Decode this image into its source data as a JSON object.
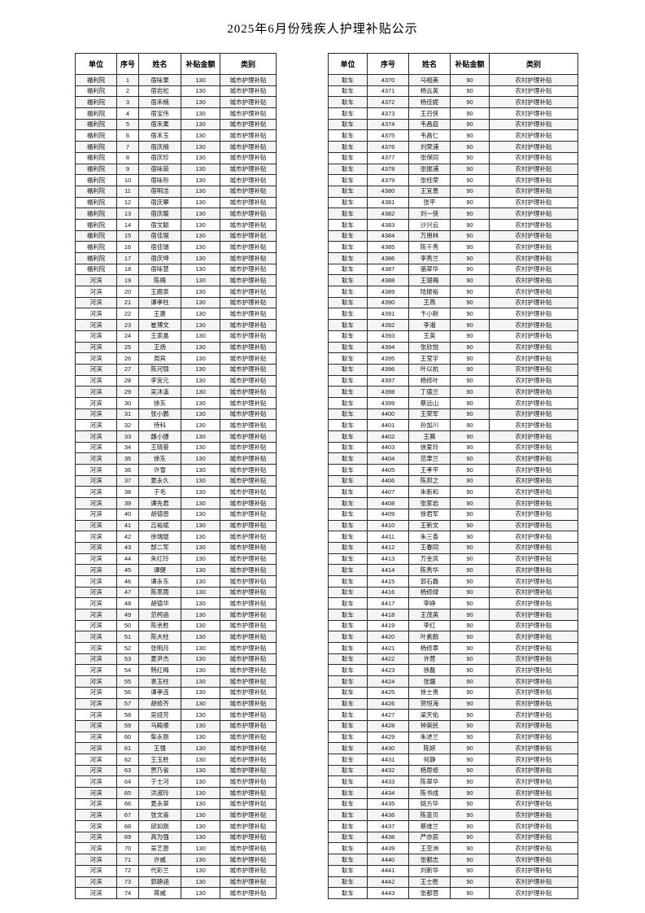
{
  "title": "2025年6月份残疾人护理补贴公示",
  "columns": [
    "单位",
    "序号",
    "姓名",
    "补贴金额",
    "类别"
  ],
  "tables": {
    "left": {
      "rows": [
        [
          "福利院",
          "1",
          "宿咏果",
          "130",
          "城市护理补贴"
        ],
        [
          "福利院",
          "2",
          "宿岩松",
          "130",
          "城市护理补贴"
        ],
        [
          "福利院",
          "3",
          "宿禾楠",
          "130",
          "城市护理补贴"
        ],
        [
          "福利院",
          "4",
          "宿宝伟",
          "130",
          "城市护理补贴"
        ],
        [
          "福利院",
          "5",
          "宿禾果",
          "130",
          "城市护理补贴"
        ],
        [
          "福利院",
          "6",
          "宿禾玉",
          "130",
          "城市护理补贴"
        ],
        [
          "福利院",
          "7",
          "宿庆楠",
          "130",
          "城市护理补贴"
        ],
        [
          "福利院",
          "8",
          "宿庆珍",
          "130",
          "城市护理补贴"
        ],
        [
          "福利院",
          "9",
          "宿咏茹",
          "130",
          "城市护理补贴"
        ],
        [
          "福利院",
          "10",
          "宿咏彤",
          "130",
          "城市护理补贴"
        ],
        [
          "福利院",
          "11",
          "宿明洁",
          "130",
          "城市护理补贴"
        ],
        [
          "福利院",
          "12",
          "宿庆攀",
          "130",
          "城市护理补贴"
        ],
        [
          "福利院",
          "13",
          "宿庆暖",
          "130",
          "城市护理补贴"
        ],
        [
          "福利院",
          "14",
          "宿文聪",
          "130",
          "城市护理补贴"
        ],
        [
          "福利院",
          "15",
          "宿佳琚",
          "130",
          "城市护理补贴"
        ],
        [
          "福利院",
          "16",
          "宿佳瑞",
          "130",
          "城市护理补贴"
        ],
        [
          "福利院",
          "17",
          "宿庆坤",
          "130",
          "城市护理补贴"
        ],
        [
          "福利院",
          "18",
          "宿咏慧",
          "130",
          "城市护理补贴"
        ],
        [
          "河滨",
          "19",
          "陈梅",
          "130",
          "城市护理补贴"
        ],
        [
          "河滨",
          "20",
          "王跟泉",
          "130",
          "城市护理补贴"
        ],
        [
          "河滨",
          "21",
          "谭孝柱",
          "130",
          "城市护理补贴"
        ],
        [
          "河滨",
          "22",
          "王惠",
          "130",
          "城市护理补贴"
        ],
        [
          "河滨",
          "23",
          "崔博文",
          "130",
          "城市护理补贴"
        ],
        [
          "河滨",
          "24",
          "王家晶",
          "130",
          "城市护理补贴"
        ],
        [
          "河滨",
          "25",
          "王炀",
          "130",
          "城市护理补贴"
        ],
        [
          "河滨",
          "26",
          "周宾",
          "130",
          "城市护理补贴"
        ],
        [
          "河滨",
          "27",
          "陈河锦",
          "130",
          "城市护理补贴"
        ],
        [
          "河滨",
          "28",
          "李宜元",
          "130",
          "城市护理补贴"
        ],
        [
          "河滨",
          "29",
          "吴沐溪",
          "130",
          "城市护理补贴"
        ],
        [
          "河滨",
          "30",
          "徐东",
          "130",
          "城市护理补贴"
        ],
        [
          "河滨",
          "31",
          "张小鹏",
          "130",
          "城市护理补贴"
        ],
        [
          "河滨",
          "32",
          "侍科",
          "130",
          "城市护理补贴"
        ],
        [
          "河滨",
          "33",
          "魏小捷",
          "130",
          "城市护理补贴"
        ],
        [
          "河滨",
          "34",
          "王晓曼",
          "130",
          "城市护理补贴"
        ],
        [
          "河滨",
          "35",
          "徐东",
          "130",
          "城市护理补贴"
        ],
        [
          "河滨",
          "36",
          "许雪",
          "130",
          "城市护理补贴"
        ],
        [
          "河滨",
          "37",
          "夏永久",
          "130",
          "城市护理补贴"
        ],
        [
          "河滨",
          "38",
          "于毛",
          "130",
          "城市护理补贴"
        ],
        [
          "河滨",
          "39",
          "谭先君",
          "130",
          "城市护理补贴"
        ],
        [
          "河滨",
          "40",
          "胡德恩",
          "130",
          "城市护理补贴"
        ],
        [
          "河滨",
          "41",
          "吕裕斌",
          "130",
          "城市护理补贴"
        ],
        [
          "河滨",
          "42",
          "徐瑞琨",
          "130",
          "城市护理补贴"
        ],
        [
          "河滨",
          "43",
          "郜二军",
          "130",
          "城市护理补贴"
        ],
        [
          "河滨",
          "44",
          "朱红玲",
          "130",
          "城市护理补贴"
        ],
        [
          "河滨",
          "45",
          "谭健",
          "130",
          "城市护理补贴"
        ],
        [
          "河滨",
          "46",
          "谭永东",
          "130",
          "城市护理补贴"
        ],
        [
          "河滨",
          "47",
          "陈思雨",
          "130",
          "城市护理补贴"
        ],
        [
          "河滨",
          "48",
          "胡德华",
          "130",
          "城市护理补贴"
        ],
        [
          "河滨",
          "49",
          "范柯函",
          "130",
          "城市护理补贴"
        ],
        [
          "河滨",
          "50",
          "陈余胜",
          "130",
          "城市护理补贴"
        ],
        [
          "河滨",
          "51",
          "陈大柱",
          "130",
          "城市护理补贴"
        ],
        [
          "河滨",
          "52",
          "张明月",
          "130",
          "城市护理补贴"
        ],
        [
          "河滨",
          "53",
          "夏尹杰",
          "130",
          "城市护理补贴"
        ],
        [
          "河滨",
          "54",
          "韩红梅",
          "130",
          "城市护理补贴"
        ],
        [
          "河滨",
          "55",
          "袁玉柱",
          "130",
          "城市护理补贴"
        ],
        [
          "河滨",
          "56",
          "谭孝连",
          "130",
          "城市护理补贴"
        ],
        [
          "河滨",
          "57",
          "胡修齐",
          "130",
          "城市护理补贴"
        ],
        [
          "河滨",
          "58",
          "吴娅芳",
          "130",
          "城市护理补贴"
        ],
        [
          "河滨",
          "59",
          "马殿顺",
          "130",
          "城市护理补贴"
        ],
        [
          "河滨",
          "60",
          "柴永刚",
          "130",
          "城市护理补贴"
        ],
        [
          "河滨",
          "61",
          "王强",
          "130",
          "城市护理补贴"
        ],
        [
          "河滨",
          "62",
          "王玉胜",
          "130",
          "城市护理补贴"
        ],
        [
          "河滨",
          "63",
          "贾乃省",
          "130",
          "城市护理补贴"
        ],
        [
          "河滨",
          "64",
          "于士河",
          "130",
          "城市护理补贴"
        ],
        [
          "河滨",
          "65",
          "洪淑玲",
          "130",
          "城市护理补贴"
        ],
        [
          "河滨",
          "66",
          "夏永翠",
          "130",
          "城市护理补贴"
        ],
        [
          "河滨",
          "67",
          "张文喜",
          "130",
          "城市护理补贴"
        ],
        [
          "河滨",
          "68",
          "邱如刚",
          "130",
          "城市护理补贴"
        ],
        [
          "河滨",
          "69",
          "高为强",
          "130",
          "城市护理补贴"
        ],
        [
          "河滨",
          "70",
          "吴艺恩",
          "130",
          "城市护理补贴"
        ],
        [
          "河滨",
          "71",
          "许威",
          "130",
          "城市护理补贴"
        ],
        [
          "河滨",
          "72",
          "代彩兰",
          "130",
          "城市护理补贴"
        ],
        [
          "河滨",
          "73",
          "郭静涵",
          "130",
          "城市护理补贴"
        ],
        [
          "河滨",
          "74",
          "蒋威",
          "130",
          "城市护理补贴"
        ]
      ]
    },
    "right": {
      "rows": [
        [
          "耿车",
          "4370",
          "马相美",
          "90",
          "农村护理补贴"
        ],
        [
          "耿车",
          "4371",
          "杨云英",
          "90",
          "农村护理补贴"
        ],
        [
          "耿车",
          "4372",
          "杨佳妮",
          "90",
          "农村护理补贴"
        ],
        [
          "耿车",
          "4373",
          "王召侠",
          "90",
          "农村护理补贴"
        ],
        [
          "耿车",
          "4374",
          "韦昌庭",
          "90",
          "农村护理补贴"
        ],
        [
          "耿车",
          "4375",
          "韦昌仁",
          "90",
          "农村护理补贴"
        ],
        [
          "耿车",
          "4376",
          "刘荣浦",
          "90",
          "农村护理补贴"
        ],
        [
          "耿车",
          "4377",
          "张保同",
          "90",
          "农村护理补贴"
        ],
        [
          "耿车",
          "4378",
          "张振浦",
          "90",
          "农村护理补贴"
        ],
        [
          "耿车",
          "4379",
          "张桂荣",
          "90",
          "农村护理补贴"
        ],
        [
          "耿车",
          "4380",
          "王宜恩",
          "90",
          "农村护理补贴"
        ],
        [
          "耿车",
          "4381",
          "张平",
          "90",
          "农村护理补贴"
        ],
        [
          "耿车",
          "4382",
          "刘一侠",
          "90",
          "农村护理补贴"
        ],
        [
          "耿车",
          "4383",
          "沙兴云",
          "90",
          "农村护理补贴"
        ],
        [
          "耿车",
          "4384",
          "万朋林",
          "90",
          "农村护理补贴"
        ],
        [
          "耿车",
          "4385",
          "陈千秀",
          "90",
          "农村护理补贴"
        ],
        [
          "耿车",
          "4386",
          "李秀兰",
          "90",
          "农村护理补贴"
        ],
        [
          "耿车",
          "4387",
          "骆翠华",
          "90",
          "农村护理补贴"
        ],
        [
          "耿车",
          "4388",
          "王银梅",
          "90",
          "农村护理补贴"
        ],
        [
          "耿车",
          "4389",
          "陆振裕",
          "90",
          "农村护理补贴"
        ],
        [
          "耿车",
          "4390",
          "王燕",
          "90",
          "农村护理补贴"
        ],
        [
          "耿车",
          "4391",
          "卞小默",
          "90",
          "农村护理补贴"
        ],
        [
          "耿车",
          "4392",
          "李湘",
          "90",
          "农村护理补贴"
        ],
        [
          "耿车",
          "4393",
          "王英",
          "90",
          "农村护理补贴"
        ],
        [
          "耿车",
          "4394",
          "张欣悦",
          "90",
          "农村护理补贴"
        ],
        [
          "耿车",
          "4395",
          "王莹宇",
          "90",
          "农村护理补贴"
        ],
        [
          "耿车",
          "4396",
          "叶以杭",
          "90",
          "农村护理补贴"
        ],
        [
          "耿车",
          "4397",
          "杨修叶",
          "90",
          "农村护理补贴"
        ],
        [
          "耿车",
          "4398",
          "丁德兰",
          "90",
          "农村护理补贴"
        ],
        [
          "耿车",
          "4399",
          "蔡远山",
          "90",
          "农村护理补贴"
        ],
        [
          "耿车",
          "4400",
          "王荣军",
          "90",
          "农村护理补贴"
        ],
        [
          "耿车",
          "4401",
          "孙加川",
          "90",
          "农村护理补贴"
        ],
        [
          "耿车",
          "4402",
          "王赛",
          "90",
          "农村护理补贴"
        ],
        [
          "耿车",
          "4403",
          "徐爱玲",
          "90",
          "农村护理补贴"
        ],
        [
          "耿车",
          "4404",
          "范聿兰",
          "90",
          "农村护理补贴"
        ],
        [
          "耿车",
          "4405",
          "王孝平",
          "90",
          "农村护理补贴"
        ],
        [
          "耿车",
          "4406",
          "陈邦之",
          "90",
          "农村护理补贴"
        ],
        [
          "耿车",
          "4407",
          "朱新和",
          "90",
          "农村护理补贴"
        ],
        [
          "耿车",
          "4408",
          "张家岩",
          "90",
          "农村护理补贴"
        ],
        [
          "耿车",
          "4409",
          "徐君军",
          "90",
          "农村护理补贴"
        ],
        [
          "耿车",
          "4410",
          "王新文",
          "90",
          "农村护理补贴"
        ],
        [
          "耿车",
          "4411",
          "朱三香",
          "90",
          "农村护理补贴"
        ],
        [
          "耿车",
          "4412",
          "王春同",
          "90",
          "农村护理补贴"
        ],
        [
          "耿车",
          "4413",
          "万金凤",
          "90",
          "农村护理补贴"
        ],
        [
          "耿车",
          "4414",
          "陈秀华",
          "90",
          "农村护理补贴"
        ],
        [
          "耿车",
          "4415",
          "郭石磊",
          "90",
          "农村护理补贴"
        ],
        [
          "耿车",
          "4416",
          "杨修绿",
          "90",
          "农村护理补贴"
        ],
        [
          "耿车",
          "4417",
          "李峥",
          "90",
          "农村护理补贴"
        ],
        [
          "耿车",
          "4418",
          "王茂英",
          "90",
          "农村护理补贴"
        ],
        [
          "耿车",
          "4419",
          "李红",
          "90",
          "农村护理补贴"
        ],
        [
          "耿车",
          "4420",
          "叶素鹃",
          "90",
          "农村护理补贴"
        ],
        [
          "耿车",
          "4421",
          "杨修章",
          "90",
          "农村护理补贴"
        ],
        [
          "耿车",
          "4422",
          "许营",
          "90",
          "农村护理补贴"
        ],
        [
          "耿车",
          "4423",
          "徐磊",
          "90",
          "农村护理补贴"
        ],
        [
          "耿车",
          "4424",
          "张疆",
          "90",
          "农村护理补贴"
        ],
        [
          "耿车",
          "4425",
          "徐士贵",
          "90",
          "农村护理补贴"
        ],
        [
          "耿车",
          "4426",
          "贺恒海",
          "90",
          "农村护理补贴"
        ],
        [
          "耿车",
          "4427",
          "梁天佑",
          "90",
          "农村护理补贴"
        ],
        [
          "耿车",
          "4428",
          "钟崇民",
          "90",
          "农村护理补贴"
        ],
        [
          "耿车",
          "4429",
          "朱述兰",
          "90",
          "农村护理补贴"
        ],
        [
          "耿车",
          "4430",
          "陈妍",
          "90",
          "农村护理补贴"
        ],
        [
          "耿车",
          "4431",
          "何静",
          "90",
          "农村护理补贴"
        ],
        [
          "耿车",
          "4432",
          "杨思修",
          "90",
          "农村护理补贴"
        ],
        [
          "耿车",
          "4433",
          "陈翠华",
          "90",
          "农村护理补贴"
        ],
        [
          "耿车",
          "4434",
          "陈书成",
          "90",
          "农村护理补贴"
        ],
        [
          "耿车",
          "4435",
          "姚方华",
          "90",
          "农村护理补贴"
        ],
        [
          "耿车",
          "4436",
          "陈查贝",
          "90",
          "农村护理补贴"
        ],
        [
          "耿车",
          "4437",
          "蔡维兰",
          "90",
          "农村护理补贴"
        ],
        [
          "耿车",
          "4438",
          "严亦辰",
          "90",
          "农村护理补贴"
        ],
        [
          "耿车",
          "4439",
          "王亚洲",
          "90",
          "农村护理补贴"
        ],
        [
          "耿车",
          "4440",
          "张都志",
          "90",
          "农村护理补贴"
        ],
        [
          "耿车",
          "4441",
          "刘新华",
          "90",
          "农村护理补贴"
        ],
        [
          "耿车",
          "4442",
          "王士胜",
          "90",
          "农村护理补贴"
        ],
        [
          "耿车",
          "4443",
          "张都营",
          "90",
          "农村护理补贴"
        ]
      ]
    }
  }
}
